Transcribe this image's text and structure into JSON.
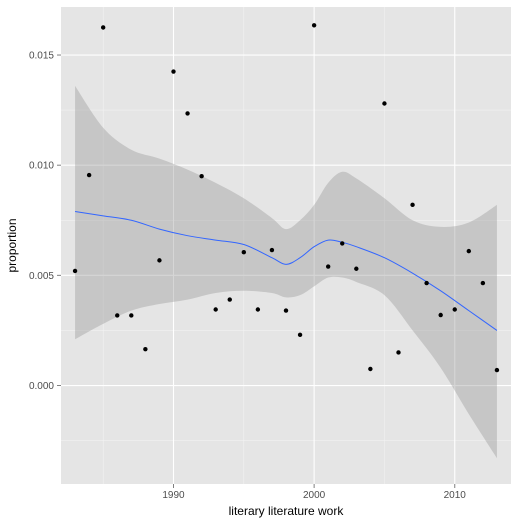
{
  "chart_data": {
    "type": "scatter",
    "title": "",
    "xlabel": "literary literature work",
    "ylabel": "proportion",
    "xlim": [
      1982,
      2014
    ],
    "ylim": [
      -0.00447,
      0.01718
    ],
    "x_ticks": [
      1990,
      2000,
      2010
    ],
    "x_tick_labels": [
      "1990",
      "2000",
      "2010"
    ],
    "y_ticks": [
      0.0,
      0.005,
      0.01,
      0.015
    ],
    "y_tick_labels": [
      "0.000",
      "0.005",
      "0.010",
      "0.015"
    ],
    "grid": true,
    "colors": {
      "panel_background": "#e5e5e5",
      "grid_major": "#ffffff",
      "grid_minor": "#f2f2f2",
      "points": "#000000",
      "smooth_line": "#3366ff",
      "confidence_band": "#999999"
    },
    "points": [
      {
        "x": 1983,
        "y": 0.0052
      },
      {
        "x": 1984,
        "y": 0.00955
      },
      {
        "x": 1985,
        "y": 0.01625
      },
      {
        "x": 1986,
        "y": 0.00318
      },
      {
        "x": 1987,
        "y": 0.00318
      },
      {
        "x": 1988,
        "y": 0.00165
      },
      {
        "x": 1989,
        "y": 0.00568
      },
      {
        "x": 1990,
        "y": 0.01425
      },
      {
        "x": 1991,
        "y": 0.01235
      },
      {
        "x": 1992,
        "y": 0.0095
      },
      {
        "x": 1993,
        "y": 0.00345
      },
      {
        "x": 1994,
        "y": 0.0039
      },
      {
        "x": 1995,
        "y": 0.00605
      },
      {
        "x": 1996,
        "y": 0.00345
      },
      {
        "x": 1997,
        "y": 0.00615
      },
      {
        "x": 1998,
        "y": 0.0034
      },
      {
        "x": 1999,
        "y": 0.0023
      },
      {
        "x": 2000,
        "y": 0.01635
      },
      {
        "x": 2001,
        "y": 0.0054
      },
      {
        "x": 2002,
        "y": 0.00645
      },
      {
        "x": 2003,
        "y": 0.0053
      },
      {
        "x": 2004,
        "y": 0.00075
      },
      {
        "x": 2005,
        "y": 0.0128
      },
      {
        "x": 2006,
        "y": 0.0015
      },
      {
        "x": 2007,
        "y": 0.0082
      },
      {
        "x": 2008,
        "y": 0.00465
      },
      {
        "x": 2009,
        "y": 0.0032
      },
      {
        "x": 2010,
        "y": 0.00345
      },
      {
        "x": 2011,
        "y": 0.0061
      },
      {
        "x": 2012,
        "y": 0.00465
      },
      {
        "x": 2013,
        "y": 0.0007
      }
    ],
    "smooth": {
      "x": [
        1983,
        1985,
        1987,
        1989,
        1991,
        1993,
        1995,
        1997,
        1998,
        1999,
        2000,
        2001,
        2002,
        2003,
        2005,
        2007,
        2009,
        2011,
        2013
      ],
      "y": [
        0.0079,
        0.0077,
        0.0075,
        0.0071,
        0.0068,
        0.0066,
        0.0064,
        0.0058,
        0.0055,
        0.0058,
        0.0063,
        0.0066,
        0.0065,
        0.0063,
        0.0058,
        0.0051,
        0.0043,
        0.0034,
        0.0025
      ],
      "lower": [
        0.0021,
        0.0028,
        0.0034,
        0.0037,
        0.0039,
        0.0042,
        0.0043,
        0.0042,
        0.004,
        0.0041,
        0.0045,
        0.0049,
        0.0049,
        0.0047,
        0.0041,
        0.0025,
        0.0008,
        -0.0013,
        -0.0033
      ],
      "upper": [
        0.0136,
        0.0117,
        0.0107,
        0.0103,
        0.0098,
        0.0092,
        0.0085,
        0.0076,
        0.0071,
        0.0075,
        0.0082,
        0.0092,
        0.0097,
        0.0094,
        0.0085,
        0.0075,
        0.0072,
        0.0074,
        0.0082
      ]
    }
  }
}
